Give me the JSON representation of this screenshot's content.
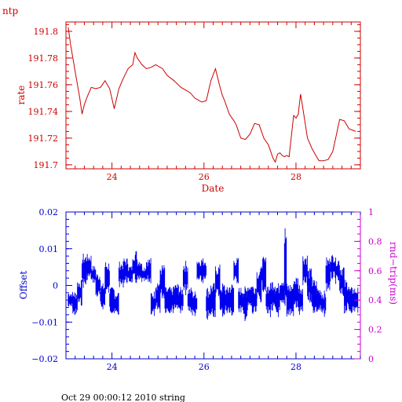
{
  "header_label": "ntp",
  "footer_text": "Oct 29 00:00:12 2010 string",
  "colors": {
    "rate": "#cc0000",
    "offset": "#0000ee",
    "rtt_axis": "#cc00cc"
  },
  "chart_data": [
    {
      "type": "line",
      "xlabel": "Date",
      "ylabel": "rate",
      "xlim": [
        23.0,
        29.4
      ],
      "ylim": [
        191.697,
        191.807
      ],
      "xticks_major": [
        24,
        26,
        28
      ],
      "xtick_labels": [
        "24",
        "26",
        "28"
      ],
      "yticks_major": [
        191.7,
        191.72,
        191.74,
        191.76,
        191.78,
        191.8
      ],
      "ytick_labels": [
        "191.7",
        "191.72",
        "191.74",
        "191.76",
        "191.78",
        "191.8"
      ],
      "series": [
        {
          "x": [
            23.05,
            23.1,
            23.2,
            23.3,
            23.35,
            23.4,
            23.45,
            23.55,
            23.65,
            23.75,
            23.85,
            23.95,
            24.05,
            24.15,
            24.25,
            24.35,
            24.45,
            24.5,
            24.55,
            24.65,
            24.75,
            24.85,
            24.95,
            25.1,
            25.2,
            25.35,
            25.5,
            25.6,
            25.7,
            25.8,
            25.9,
            25.95,
            26.05,
            26.15,
            26.25,
            26.35,
            26.4,
            26.45,
            26.55,
            26.65,
            26.7,
            26.8,
            26.9,
            27.0,
            27.1,
            27.2,
            27.3,
            27.4,
            27.5,
            27.55,
            27.6,
            27.65,
            27.7,
            27.75,
            27.8,
            27.85,
            27.95,
            28.0,
            28.05,
            28.1,
            28.15,
            28.25,
            28.35,
            28.45,
            28.5,
            28.6,
            28.7,
            28.8,
            28.85,
            28.95,
            29.05,
            29.15,
            29.3
          ],
          "y": [
            191.803,
            191.79,
            191.77,
            191.75,
            191.738,
            191.745,
            191.75,
            191.758,
            191.757,
            191.758,
            191.763,
            191.757,
            191.742,
            191.757,
            191.765,
            191.772,
            191.775,
            191.784,
            191.78,
            191.775,
            191.772,
            191.773,
            191.775,
            191.772,
            191.767,
            191.763,
            191.758,
            191.756,
            191.754,
            191.75,
            191.748,
            191.747,
            191.748,
            191.763,
            191.772,
            191.758,
            191.752,
            191.748,
            191.738,
            191.733,
            191.73,
            191.72,
            191.719,
            191.723,
            191.731,
            191.73,
            191.72,
            191.715,
            191.705,
            191.702,
            191.708,
            191.709,
            191.707,
            191.706,
            191.707,
            191.706,
            191.737,
            191.735,
            191.738,
            191.753,
            191.742,
            191.72,
            191.712,
            191.706,
            191.703,
            191.703,
            191.704,
            191.71,
            191.718,
            191.734,
            191.733,
            191.727,
            191.725
          ]
        }
      ]
    },
    {
      "type": "line",
      "xlabel": "",
      "ylabel": "Offset",
      "y2label": "rnd−trip(ms)",
      "xlim": [
        23.0,
        29.4
      ],
      "ylim": [
        -0.02,
        0.02
      ],
      "y2lim": [
        0,
        1
      ],
      "xticks_major": [
        24,
        26,
        28
      ],
      "xtick_labels": [
        "24",
        "26",
        "28"
      ],
      "yticks_major": [
        -0.02,
        -0.01,
        0,
        0.01,
        0.02
      ],
      "ytick_labels": [
        "−0.02",
        "−0.01",
        "0",
        "0.01",
        "0.02"
      ],
      "y2ticks_major": [
        0,
        0.2,
        0.4,
        0.6,
        0.8,
        1
      ],
      "y2tick_labels": [
        "0",
        "0.2",
        "0.4",
        "0.6",
        "0.8",
        "1"
      ],
      "series": [
        {
          "x": [
            23.05,
            23.15,
            23.25,
            23.35,
            23.45,
            23.55,
            23.65,
            23.75,
            23.85,
            23.95,
            24.05,
            24.15,
            24.25,
            24.35,
            24.45,
            24.55,
            24.65,
            24.75,
            24.85,
            24.95,
            25.05,
            25.15,
            25.25,
            25.35,
            25.45,
            25.55,
            25.65,
            25.75,
            25.85,
            25.95,
            26.05,
            26.15,
            26.25,
            26.35,
            26.45,
            26.55,
            26.65,
            26.75,
            26.85,
            26.95,
            27.05,
            27.15,
            27.25,
            27.35,
            27.45,
            27.55,
            27.65,
            27.75,
            27.8,
            27.85,
            27.95,
            28.05,
            28.15,
            28.25,
            28.35,
            28.45,
            28.55,
            28.65,
            28.75,
            28.85,
            28.95,
            29.05,
            29.15,
            29.25
          ],
          "y": [
            -0.004,
            -0.005,
            -0.002,
            0.004,
            0.005,
            0.003,
            0.0,
            -0.003,
            0.002,
            -0.004,
            -0.005,
            0.003,
            0.004,
            0.003,
            0.005,
            0.004,
            0.003,
            0.004,
            -0.005,
            -0.003,
            0.001,
            -0.004,
            -0.004,
            -0.003,
            -0.004,
            0.002,
            -0.004,
            -0.005,
            0.004,
            0.004,
            -0.005,
            -0.004,
            0.001,
            -0.004,
            -0.004,
            -0.004,
            0.004,
            -0.004,
            -0.005,
            -0.003,
            -0.004,
            0.0,
            0.003,
            -0.004,
            -0.003,
            -0.004,
            -0.002,
            0.005,
            -0.004,
            -0.004,
            -0.002,
            -0.004,
            0.004,
            0.0,
            -0.003,
            -0.004,
            -0.005,
            0.003,
            0.005,
            0.004,
            0.001,
            -0.003,
            -0.004,
            -0.004
          ],
          "spread": [
            0.002,
            0.003,
            0.003,
            0.004,
            0.003,
            0.002,
            0.003,
            0.003,
            0.004,
            0.003,
            0.003,
            0.003,
            0.003,
            0.002,
            0.004,
            0.003,
            0.002,
            0.003,
            0.003,
            0.004,
            0.004,
            0.003,
            0.003,
            0.003,
            0.003,
            0.004,
            0.003,
            0.003,
            0.003,
            0.003,
            0.004,
            0.004,
            0.004,
            0.004,
            0.003,
            0.004,
            0.003,
            0.003,
            0.004,
            0.003,
            0.004,
            0.004,
            0.004,
            0.004,
            0.004,
            0.004,
            0.004,
            0.01,
            0.004,
            0.004,
            0.004,
            0.004,
            0.004,
            0.004,
            0.004,
            0.003,
            0.003,
            0.004,
            0.003,
            0.003,
            0.004,
            0.004,
            0.003,
            0.003
          ]
        }
      ]
    }
  ]
}
